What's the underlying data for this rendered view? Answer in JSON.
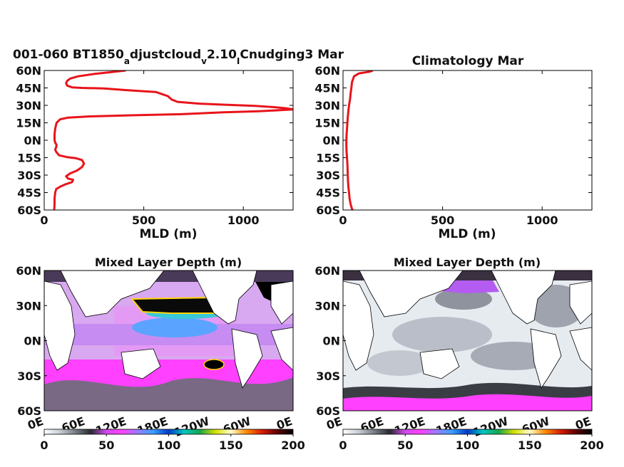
{
  "chart_data": [
    {
      "type": "line",
      "title": "001-060 BT1850",
      "title_parts": {
        "main": "001-060 BT1850",
        "sub1": "a",
        "mid1": "djustcloud",
        "sub2": "v",
        "mid2": "2.10",
        "sub3": "I",
        "end": "Cnudging3 Mar"
      },
      "xlabel": "MLD (m)",
      "ylabel": "",
      "xlim": [
        0,
        1250
      ],
      "ylim": [
        -60,
        60
      ],
      "x_ticks": [
        0,
        500,
        1000
      ],
      "x_tick_labels": [
        "0",
        "500",
        "1000"
      ],
      "y_ticks": [
        60,
        45,
        30,
        15,
        0,
        -15,
        -30,
        -45,
        -60
      ],
      "y_tick_labels": [
        "60N",
        "45N",
        "30N",
        "15N",
        "0N",
        "15S",
        "30S",
        "45S",
        "60S"
      ],
      "series": [
        {
          "color": "#e8141b",
          "points": [
            [
              410,
              60
            ],
            [
              330,
              58.5
            ],
            [
              250,
              57
            ],
            [
              170,
              55
            ],
            [
              130,
              53
            ],
            [
              115,
              51
            ],
            [
              110,
              49
            ],
            [
              115,
              47
            ],
            [
              140,
              45.5
            ],
            [
              190,
              45
            ],
            [
              300,
              44.5
            ],
            [
              420,
              43
            ],
            [
              560,
              41.5
            ],
            [
              620,
              38
            ],
            [
              640,
              35
            ],
            [
              670,
              33
            ],
            [
              780,
              31.5
            ],
            [
              920,
              30.5
            ],
            [
              1060,
              29.5
            ],
            [
              1150,
              28.5
            ],
            [
              1215,
              27.5
            ],
            [
              1250,
              26.5
            ],
            [
              1200,
              26
            ],
            [
              1080,
              25
            ],
            [
              900,
              24
            ],
            [
              700,
              22.5
            ],
            [
              450,
              21.5
            ],
            [
              230,
              20.5
            ],
            [
              120,
              19.5
            ],
            [
              80,
              18
            ],
            [
              62,
              15
            ],
            [
              55,
              10
            ],
            [
              52,
              5
            ],
            [
              52,
              0
            ],
            [
              55,
              -2
            ],
            [
              62,
              -4
            ],
            [
              60,
              -6
            ],
            [
              55,
              -8
            ],
            [
              60,
              -10
            ],
            [
              75,
              -13
            ],
            [
              115,
              -14.5
            ],
            [
              160,
              -15.5
            ],
            [
              190,
              -17
            ],
            [
              200,
              -20
            ],
            [
              190,
              -23
            ],
            [
              165,
              -26
            ],
            [
              130,
              -28.5
            ],
            [
              110,
              -31
            ],
            [
              120,
              -33
            ],
            [
              145,
              -34
            ],
            [
              140,
              -36
            ],
            [
              105,
              -38
            ],
            [
              80,
              -40
            ],
            [
              60,
              -42
            ],
            [
              55,
              -45
            ],
            [
              52,
              -50
            ],
            [
              52,
              -55
            ],
            [
              50,
              -60
            ]
          ]
        }
      ]
    },
    {
      "type": "line",
      "title": "Climatology Mar",
      "xlabel": "MLD (m)",
      "ylabel": "",
      "xlim": [
        0,
        1250
      ],
      "ylim": [
        -60,
        60
      ],
      "x_ticks": [
        0,
        500,
        1000
      ],
      "x_tick_labels": [
        "0",
        "500",
        "1000"
      ],
      "y_ticks": [
        60,
        45,
        30,
        15,
        0,
        -15,
        -30,
        -45,
        -60
      ],
      "y_tick_labels": [
        "60N",
        "45N",
        "30N",
        "15N",
        "0N",
        "15S",
        "30S",
        "45S",
        "60S"
      ],
      "series": [
        {
          "color": "#e8141b",
          "points": [
            [
              150,
              60
            ],
            [
              135,
              59
            ],
            [
              80,
              57.5
            ],
            [
              55,
              55
            ],
            [
              45,
              50
            ],
            [
              42,
              45
            ],
            [
              38,
              40
            ],
            [
              35,
              35
            ],
            [
              30,
              30
            ],
            [
              27,
              25
            ],
            [
              24,
              20
            ],
            [
              22,
              15
            ],
            [
              20,
              10
            ],
            [
              18,
              5
            ],
            [
              17,
              0
            ],
            [
              17,
              -5
            ],
            [
              18,
              -10
            ],
            [
              20,
              -15
            ],
            [
              22,
              -20
            ],
            [
              23,
              -25
            ],
            [
              24,
              -30
            ],
            [
              25,
              -35
            ],
            [
              27,
              -40
            ],
            [
              30,
              -45
            ],
            [
              33,
              -50
            ],
            [
              38,
              -55
            ],
            [
              45,
              -59
            ],
            [
              48,
              -60
            ]
          ]
        }
      ]
    },
    {
      "type": "heatmap",
      "title": "Mixed Layer Depth (m)",
      "xlabel": "",
      "ylabel": "",
      "xlim": [
        0,
        360
      ],
      "ylim": [
        -60,
        60
      ],
      "x_tick_labels": [
        "0E",
        "60E",
        "120E",
        "180E",
        "120W",
        "60W",
        "0E"
      ],
      "y_tick_labels": [
        "60N",
        "30N",
        "0N",
        "30S",
        "60S"
      ],
      "colorbar": {
        "range": [
          0,
          200
        ],
        "tick_labels": [
          "0",
          "50",
          "100",
          "150",
          "200"
        ]
      }
    },
    {
      "type": "heatmap",
      "title": "Mixed Layer Depth (m)",
      "xlabel": "",
      "ylabel": "",
      "xlim": [
        0,
        360
      ],
      "ylim": [
        -60,
        60
      ],
      "x_tick_labels": [
        "0E",
        "60E",
        "120E",
        "180E",
        "120W",
        "60W",
        "0E"
      ],
      "y_tick_labels": [
        "60N",
        "30N",
        "0N",
        "30S",
        "60S"
      ],
      "colorbar": {
        "range": [
          0,
          200
        ],
        "tick_labels": [
          "0",
          "50",
          "100",
          "150",
          "200"
        ]
      }
    }
  ],
  "colormap": [
    "#ffffff",
    "#c9ced6",
    "#7a7d86",
    "#2a2a30",
    "#d24bf0",
    "#ff40ff",
    "#9a7cff",
    "#3aa0ff",
    "#0039c8",
    "#00c8c0",
    "#17a64b",
    "#d8e000",
    "#ffffd0",
    "#ff8c00",
    "#d81b00",
    "#5a0000",
    "#000000"
  ]
}
